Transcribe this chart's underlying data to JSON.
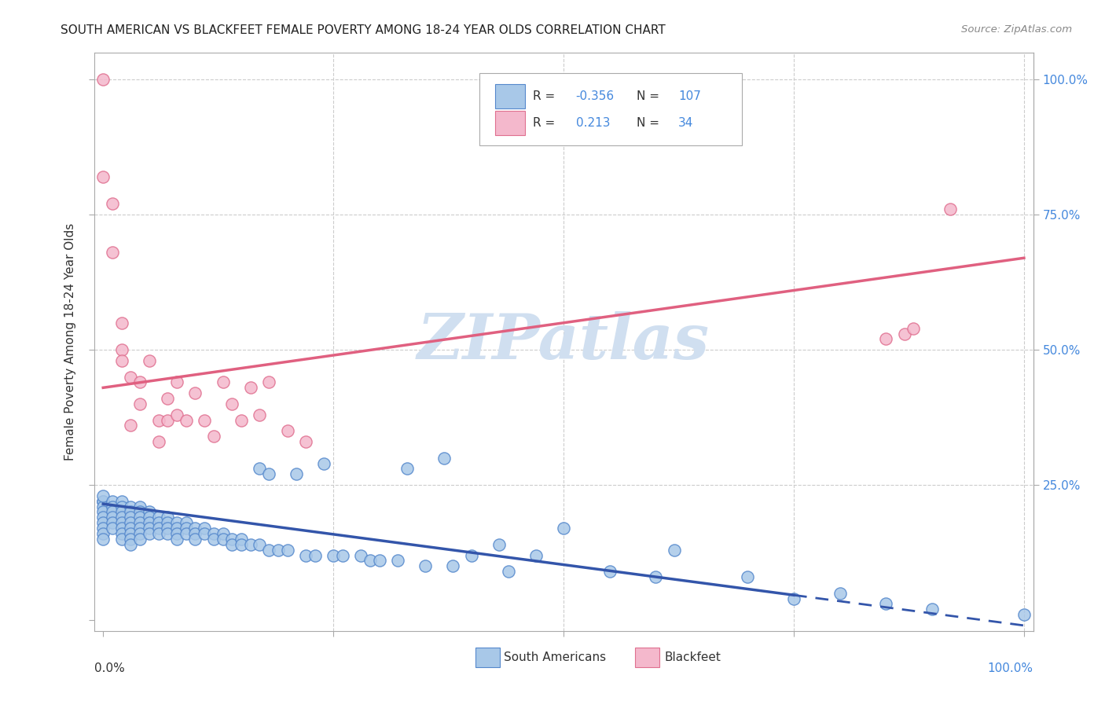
{
  "title": "SOUTH AMERICAN VS BLACKFEET FEMALE POVERTY AMONG 18-24 YEAR OLDS CORRELATION CHART",
  "source": "Source: ZipAtlas.com",
  "ylabel": "Female Poverty Among 18-24 Year Olds",
  "xlim": [
    -0.01,
    1.01
  ],
  "ylim": [
    -0.02,
    1.05
  ],
  "color_blue": "#a8c8e8",
  "color_blue_edge": "#5588cc",
  "color_pink": "#f4b8cc",
  "color_pink_edge": "#e07090",
  "trend_blue": "#3355aa",
  "trend_pink": "#e06080",
  "watermark_color": "#d0dff0",
  "grid_color": "#cccccc",
  "right_tick_color": "#4488dd",
  "sa_x": [
    0.0,
    0.0,
    0.0,
    0.0,
    0.0,
    0.0,
    0.0,
    0.0,
    0.0,
    0.0,
    0.01,
    0.01,
    0.01,
    0.01,
    0.01,
    0.01,
    0.02,
    0.02,
    0.02,
    0.02,
    0.02,
    0.02,
    0.02,
    0.02,
    0.03,
    0.03,
    0.03,
    0.03,
    0.03,
    0.03,
    0.03,
    0.03,
    0.04,
    0.04,
    0.04,
    0.04,
    0.04,
    0.04,
    0.04,
    0.05,
    0.05,
    0.05,
    0.05,
    0.05,
    0.06,
    0.06,
    0.06,
    0.06,
    0.07,
    0.07,
    0.07,
    0.07,
    0.08,
    0.08,
    0.08,
    0.08,
    0.09,
    0.09,
    0.09,
    0.1,
    0.1,
    0.1,
    0.11,
    0.11,
    0.12,
    0.12,
    0.13,
    0.13,
    0.14,
    0.14,
    0.15,
    0.15,
    0.16,
    0.17,
    0.17,
    0.18,
    0.18,
    0.19,
    0.2,
    0.21,
    0.22,
    0.23,
    0.24,
    0.25,
    0.26,
    0.28,
    0.29,
    0.3,
    0.32,
    0.33,
    0.35,
    0.37,
    0.38,
    0.4,
    0.43,
    0.44,
    0.47,
    0.5,
    0.55,
    0.6,
    0.62,
    0.7,
    0.75,
    0.8,
    0.85,
    0.9,
    1.0
  ],
  "sa_y": [
    0.22,
    0.22,
    0.21,
    0.2,
    0.19,
    0.18,
    0.17,
    0.16,
    0.15,
    0.23,
    0.22,
    0.21,
    0.2,
    0.19,
    0.18,
    0.17,
    0.22,
    0.21,
    0.2,
    0.19,
    0.18,
    0.17,
    0.16,
    0.15,
    0.21,
    0.2,
    0.19,
    0.18,
    0.17,
    0.16,
    0.15,
    0.14,
    0.21,
    0.2,
    0.19,
    0.18,
    0.17,
    0.16,
    0.15,
    0.2,
    0.19,
    0.18,
    0.17,
    0.16,
    0.19,
    0.18,
    0.17,
    0.16,
    0.19,
    0.18,
    0.17,
    0.16,
    0.18,
    0.17,
    0.16,
    0.15,
    0.18,
    0.17,
    0.16,
    0.17,
    0.16,
    0.15,
    0.17,
    0.16,
    0.16,
    0.15,
    0.16,
    0.15,
    0.15,
    0.14,
    0.15,
    0.14,
    0.14,
    0.14,
    0.28,
    0.13,
    0.27,
    0.13,
    0.13,
    0.27,
    0.12,
    0.12,
    0.29,
    0.12,
    0.12,
    0.12,
    0.11,
    0.11,
    0.11,
    0.28,
    0.1,
    0.3,
    0.1,
    0.12,
    0.14,
    0.09,
    0.12,
    0.17,
    0.09,
    0.08,
    0.13,
    0.08,
    0.04,
    0.05,
    0.03,
    0.02,
    0.01
  ],
  "bf_x": [
    0.0,
    0.0,
    0.01,
    0.01,
    0.02,
    0.02,
    0.02,
    0.03,
    0.03,
    0.04,
    0.04,
    0.05,
    0.06,
    0.06,
    0.07,
    0.07,
    0.08,
    0.08,
    0.09,
    0.1,
    0.11,
    0.12,
    0.13,
    0.14,
    0.15,
    0.16,
    0.17,
    0.18,
    0.2,
    0.22,
    0.85,
    0.87,
    0.88,
    0.92
  ],
  "bf_y": [
    1.0,
    0.82,
    0.77,
    0.68,
    0.55,
    0.5,
    0.48,
    0.45,
    0.36,
    0.44,
    0.4,
    0.48,
    0.37,
    0.33,
    0.41,
    0.37,
    0.44,
    0.38,
    0.37,
    0.42,
    0.37,
    0.34,
    0.44,
    0.4,
    0.37,
    0.43,
    0.38,
    0.44,
    0.35,
    0.33,
    0.52,
    0.53,
    0.54,
    0.76
  ],
  "trend_sa_x0": 0.0,
  "trend_sa_y0": 0.215,
  "trend_sa_x1": 1.0,
  "trend_sa_y1": -0.01,
  "trend_sa_solid_x1": 0.75,
  "trend_bf_x0": 0.0,
  "trend_bf_y0": 0.43,
  "trend_bf_x1": 1.0,
  "trend_bf_y1": 0.67,
  "legend_r1": "-0.356",
  "legend_n1": "107",
  "legend_r2": "0.213",
  "legend_n2": "34"
}
